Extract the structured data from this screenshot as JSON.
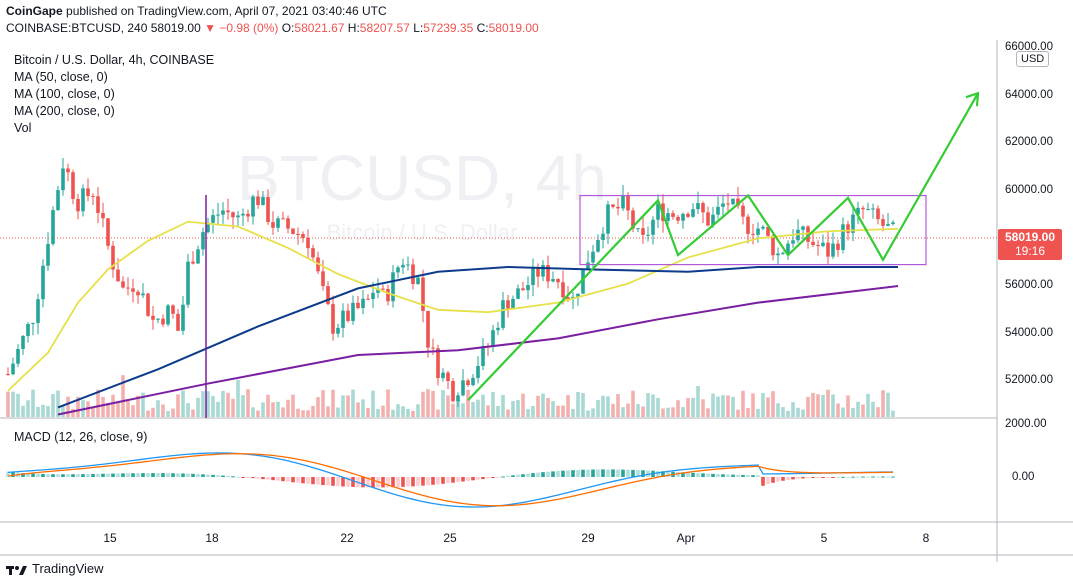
{
  "header": {
    "publisher": "CoinGape",
    "published_text": "published on TradingView.com, April 07, 2021 03:40:46 UTC",
    "symbol": "COINBASE:BTCUSD, 240",
    "last": "58019.00",
    "change": "▼ −0.98 (0%)",
    "open_label": "O:",
    "open": "58021.67",
    "high_label": "H:",
    "high": "58207.57",
    "low_label": "L:",
    "low": "57239.35",
    "close_label": "C:",
    "close": "58019.00"
  },
  "legend": {
    "title": "Bitcoin / U.S. Dollar, 4h, COINBASE",
    "ma50": "MA (50, close, 0)",
    "ma100": "MA (100, close, 0)",
    "ma200": "MA (200, close, 0)",
    "vol": "Vol"
  },
  "watermark": {
    "symbol": "BTCUSD, 4h",
    "sub": "Bitcoin / U.S. Dollar"
  },
  "price_axis": {
    "currency": "USD",
    "ticks": [
      "66000.00",
      "64000.00",
      "62000.00",
      "60000.00",
      "58000.00",
      "56000.00",
      "54000.00",
      "52000.00"
    ],
    "last_price": "58019.00",
    "countdown": "19:16"
  },
  "macd": {
    "label": "MACD (12, 26, close, 9)",
    "ticks": [
      "2000.00",
      "0.00"
    ]
  },
  "time_axis": {
    "ticks": [
      "15",
      "18",
      "22",
      "25",
      "29",
      "Apr",
      "5",
      "8"
    ]
  },
  "footer": {
    "brand": "TradingView"
  },
  "colors": {
    "up": "#26a69a",
    "down": "#ef5350",
    "ma50": "#e6e14a",
    "ma100": "#0d3b8c",
    "ma200": "#7b1fa2",
    "annotation": "#33cc33",
    "channel": "#b159d6",
    "macd_line": "#2196f3",
    "signal_line": "#ff6d00"
  },
  "chart_data": {
    "type": "candlestick",
    "title": "Bitcoin / U.S. Dollar, 4h, COINBASE",
    "x_ticks": [
      "15",
      "18",
      "22",
      "25",
      "29",
      "Apr",
      "5",
      "8"
    ],
    "ylim": [
      51000,
      66000
    ],
    "series": [
      {
        "name": "MA (50, close, 0)",
        "approx_points": [
          [
            0,
            51600
          ],
          [
            8,
            53200
          ],
          [
            14,
            55300
          ],
          [
            20,
            56700
          ],
          [
            28,
            57900
          ],
          [
            36,
            58700
          ],
          [
            46,
            58500
          ],
          [
            56,
            57600
          ],
          [
            66,
            56500
          ],
          [
            76,
            55700
          ],
          [
            86,
            55000
          ],
          [
            96,
            54900
          ],
          [
            110,
            55300
          ],
          [
            124,
            56100
          ],
          [
            136,
            57200
          ],
          [
            150,
            58000
          ],
          [
            164,
            58300
          ],
          [
            178,
            58400
          ]
        ]
      },
      {
        "name": "MA (100, close, 0)",
        "approx_points": [
          [
            10,
            50900
          ],
          [
            30,
            52500
          ],
          [
            50,
            54300
          ],
          [
            70,
            55900
          ],
          [
            86,
            56600
          ],
          [
            100,
            56800
          ],
          [
            116,
            56700
          ],
          [
            136,
            56600
          ],
          [
            150,
            56800
          ],
          [
            164,
            56800
          ],
          [
            178,
            56800
          ]
        ]
      },
      {
        "name": "MA (200, close, 0)",
        "approx_points": [
          [
            10,
            50600
          ],
          [
            40,
            51900
          ],
          [
            70,
            53100
          ],
          [
            90,
            53300
          ],
          [
            110,
            53800
          ],
          [
            130,
            54600
          ],
          [
            150,
            55300
          ],
          [
            178,
            56000
          ]
        ]
      }
    ],
    "channel": {
      "top": 59800,
      "bottom": 56900
    },
    "last_price": 58019.0,
    "macd": {
      "ylim": [
        -1600,
        2200
      ],
      "ticks": [
        "2000.00",
        "0.00"
      ]
    }
  }
}
